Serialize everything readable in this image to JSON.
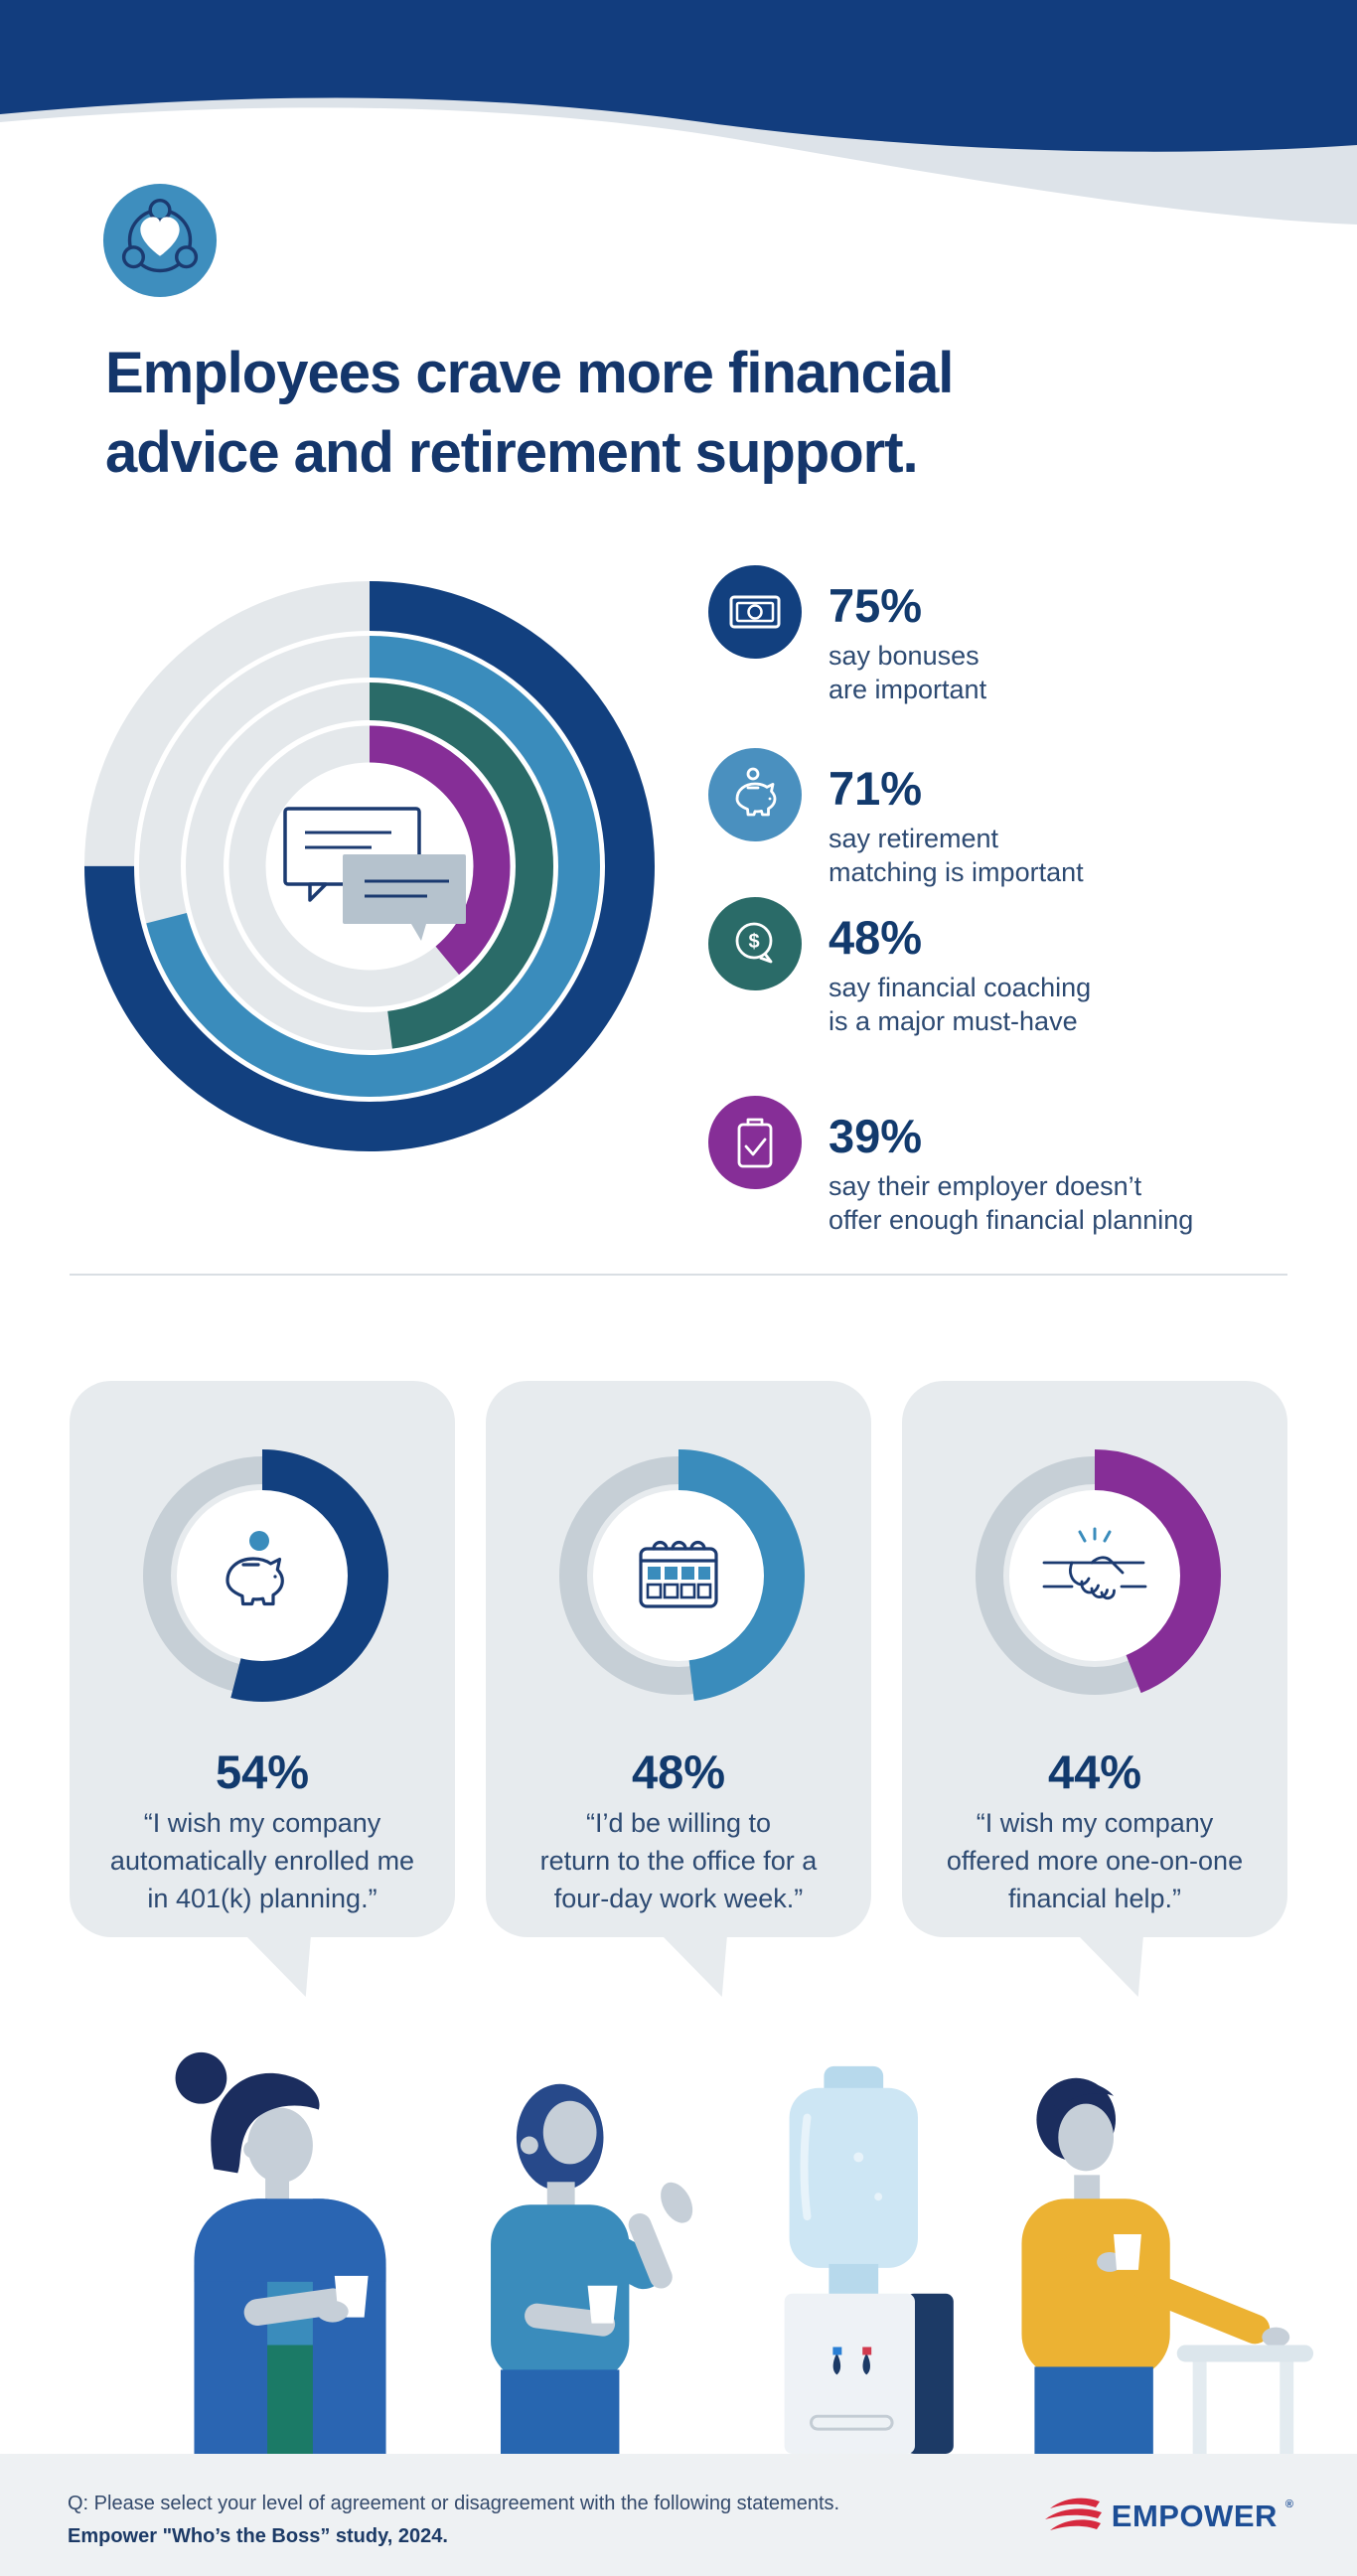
{
  "header": {
    "badge_icon": "community-heart-icon",
    "title_lines": [
      "Employees crave more financial",
      "advice and retirement support."
    ]
  },
  "colors": {
    "brand_navy": "#12407f",
    "brand_blue": "#3a8cbc",
    "brand_teal": "#2a6b68",
    "brand_purple": "#862e97",
    "wave_navy": "#123d7e",
    "wave_gray": "#dde3e9",
    "card_bg": "#e7ebee",
    "footer_bg": "#eef1f3",
    "logo_red": "#d6293e",
    "logo_navy": "#1d4e95"
  },
  "chart_data": [
    {
      "type": "concentric_donut",
      "title": "Benefits employees value",
      "start_angle": "12-oclock",
      "direction": "clockwise",
      "track_color": "#e4e8eb",
      "center_icon": "chat-bubbles-icon",
      "series": [
        {
          "label": "say bonuses are important",
          "value": 75,
          "color": "#12407f"
        },
        {
          "label": "say retirement matching is important",
          "value": 71,
          "color": "#3a8cbc"
        },
        {
          "label": "say financial coaching is a major must-have",
          "value": 48,
          "color": "#2a6b68"
        },
        {
          "label": "say their employer doesn't offer enough financial planning",
          "value": 39,
          "color": "#862e97"
        }
      ]
    },
    {
      "type": "donut",
      "title": "Employee agreement statements",
      "start_angle": "12-oclock",
      "direction": "clockwise",
      "track_color": "#c6cfd6",
      "items": [
        {
          "label": "I wish my company automatically enrolled me in 401(k) planning.",
          "value": 54,
          "color": "#12407f",
          "icon": "piggy-bank-icon"
        },
        {
          "label": "I'd be willing to return to the office for a four-day work week.",
          "value": 48,
          "color": "#3a8cbc",
          "icon": "calendar-icon"
        },
        {
          "label": "I wish my company offered more one-on-one financial help.",
          "value": 44,
          "color": "#862e97",
          "icon": "handshake-icon"
        }
      ]
    }
  ],
  "legend": {
    "items": [
      {
        "icon": "banknote-icon",
        "icon_bg": "#12407f",
        "pct": "75%",
        "line1": "say bonuses",
        "line2": "are important"
      },
      {
        "icon": "piggy-bank-icon",
        "icon_bg": "#4a90bf",
        "pct": "71%",
        "line1": "say retirement",
        "line2": "matching is important"
      },
      {
        "icon": "dollar-chat-icon",
        "icon_bg": "#2a6b68",
        "pct": "48%",
        "line1": "say financial coaching",
        "line2": "is a major must-have"
      },
      {
        "icon": "clipboard-check-icon",
        "icon_bg": "#862e97",
        "pct": "39%",
        "line1": "say their employer doesn’t",
        "line2": "offer enough financial planning"
      }
    ]
  },
  "cards": [
    {
      "pct": "54%",
      "quote_line1": "“I wish my company",
      "quote_line2": "automatically enrolled me",
      "quote_line3": "in 401(k) planning.”"
    },
    {
      "pct": "48%",
      "quote_line1": "“I’d be willing to",
      "quote_line2": "return to the office for a",
      "quote_line3": "four-day work week.”"
    },
    {
      "pct": "44%",
      "quote_line1": "“I wish my company",
      "quote_line2": "offered more one-on-one",
      "quote_line3": "financial help.”"
    }
  ],
  "footer": {
    "question": "Q: Please select your level of agreement or disagreement with the following statements.",
    "source": "Empower \"Who’s the Boss” study, 2024.",
    "logo_text": "EMPOWER",
    "logo_reg": "®"
  }
}
